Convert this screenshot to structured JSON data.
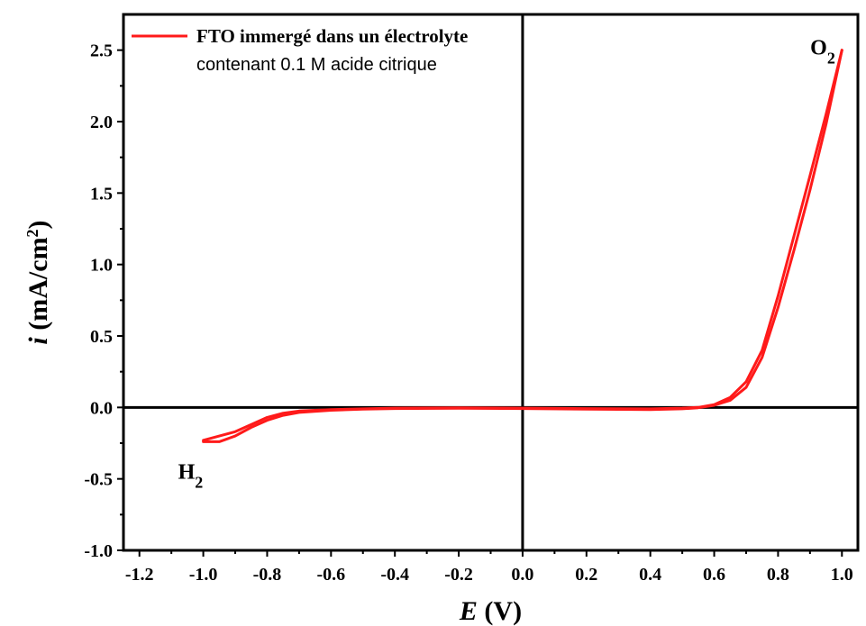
{
  "chart_data": {
    "type": "line",
    "xlabel_symbol": "E",
    "xlabel_unit": " (V)",
    "ylabel_symbol": "i",
    "ylabel_unit": " (mA/cm",
    "ylabel_sup": "2",
    "ylabel_close": ")",
    "xlim": [
      -1.25,
      1.05
    ],
    "ylim": [
      -1.0,
      2.75
    ],
    "xticks": [
      -1.2,
      -1.0,
      -0.8,
      -0.6,
      -0.4,
      -0.2,
      0.0,
      0.2,
      0.4,
      0.6,
      0.8,
      1.0
    ],
    "xtick_labels": [
      "-1.2",
      "-1.0",
      "-0.8",
      "-0.6",
      "-0.4",
      "-0.2",
      "0.0",
      "0.2",
      "0.4",
      "0.6",
      "0.8",
      "1.0"
    ],
    "yticks": [
      -1.0,
      -0.5,
      0.0,
      0.5,
      1.0,
      1.5,
      2.0,
      2.5
    ],
    "ytick_labels": [
      "-1.0",
      "-0.5",
      "0.0",
      "0.5",
      "1.0",
      "1.5",
      "2.0",
      "2.5"
    ],
    "legend": {
      "line1": "FTO immergé dans un électrolyte",
      "line2": "contenant 0.1 M acide citrique",
      "position": "top-left"
    },
    "annotations": [
      {
        "label": "O",
        "sub": "2",
        "x": 0.94,
        "y": 2.47
      },
      {
        "label": "H",
        "sub": "2",
        "x": -1.04,
        "y": -0.5
      }
    ],
    "color": "#ff1a1a",
    "series": [
      {
        "x": [
          -1.0,
          -0.95,
          -0.9,
          -0.85,
          -0.8,
          -0.75,
          -0.7,
          -0.6,
          -0.5,
          -0.4,
          -0.2,
          0.0,
          0.2,
          0.4,
          0.5,
          0.55,
          0.6,
          0.65,
          0.7,
          0.75,
          0.8,
          0.85,
          0.9,
          0.95,
          1.0
        ],
        "y": [
          -0.23,
          -0.2,
          -0.17,
          -0.12,
          -0.07,
          -0.04,
          -0.025,
          -0.015,
          -0.01,
          -0.005,
          -0.003,
          -0.005,
          -0.008,
          -0.01,
          -0.005,
          0.0,
          0.02,
          0.07,
          0.18,
          0.4,
          0.78,
          1.2,
          1.62,
          2.05,
          2.5
        ]
      },
      {
        "x": [
          1.0,
          0.95,
          0.9,
          0.85,
          0.8,
          0.75,
          0.7,
          0.65,
          0.6,
          0.55,
          0.5,
          0.4,
          0.2,
          0.0,
          -0.2,
          -0.4,
          -0.5,
          -0.6,
          -0.7,
          -0.75,
          -0.8,
          -0.85,
          -0.9,
          -0.95,
          -1.0
        ],
        "y": [
          2.5,
          1.98,
          1.52,
          1.1,
          0.7,
          0.35,
          0.14,
          0.05,
          0.015,
          -0.002,
          -0.01,
          -0.015,
          -0.012,
          -0.008,
          -0.006,
          -0.008,
          -0.012,
          -0.02,
          -0.035,
          -0.055,
          -0.09,
          -0.14,
          -0.2,
          -0.24,
          -0.24
        ]
      }
    ]
  }
}
